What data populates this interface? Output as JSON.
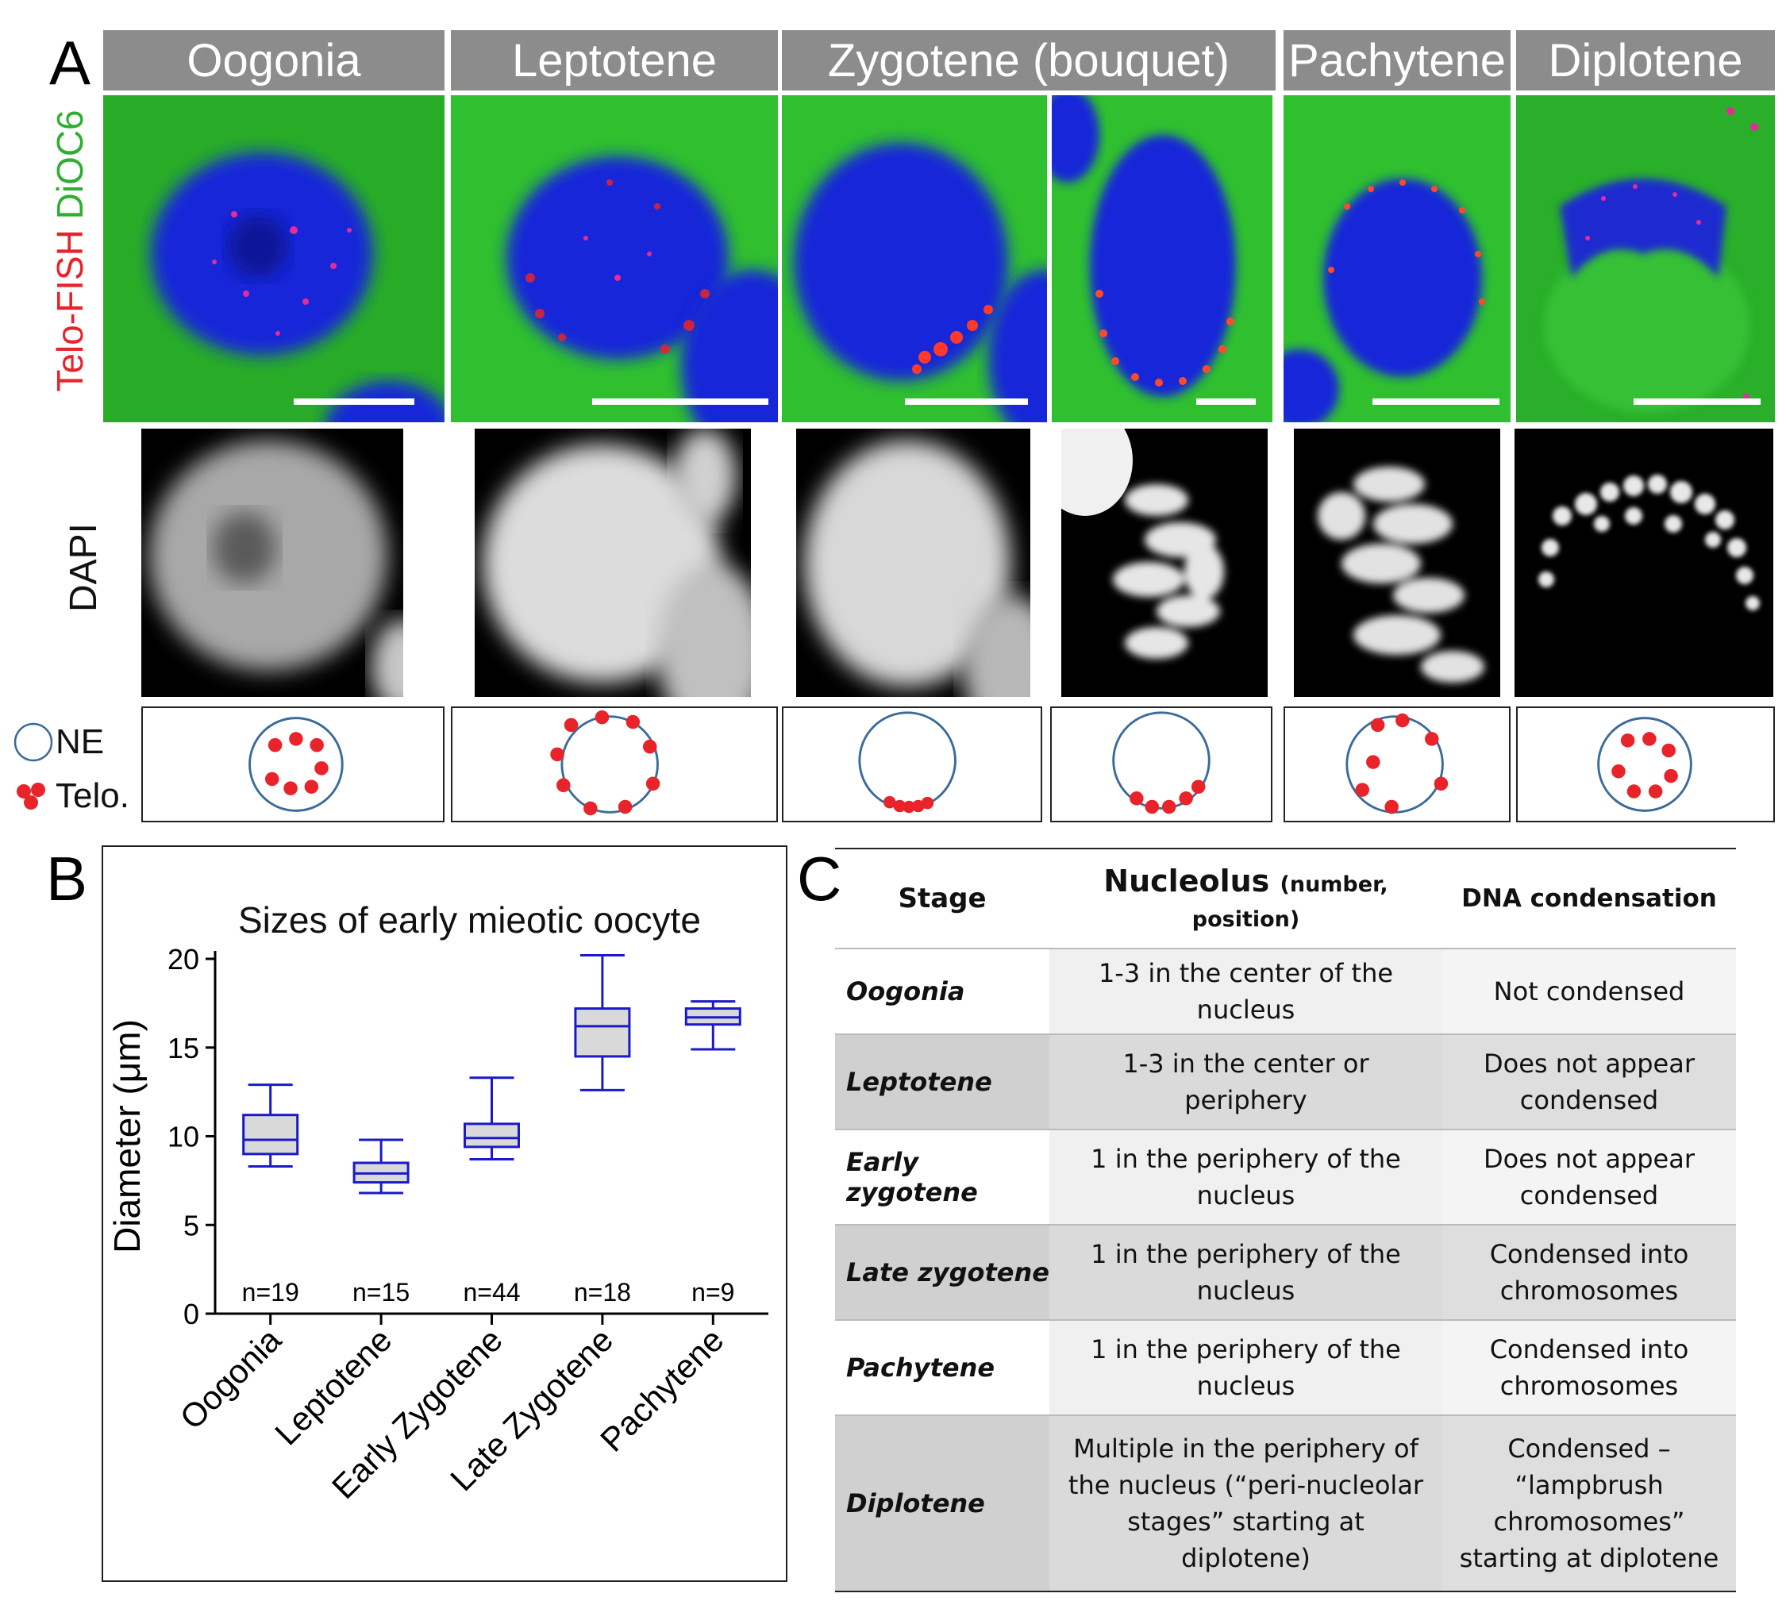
{
  "panel_a": {
    "letter": "A",
    "stage_headers": [
      "Oogonia",
      "Leptotene",
      "Zygotene (bouquet)",
      "Pachytene",
      "Diplotene"
    ],
    "stain_label_red": "Telo-FISH",
    "stain_label_green": "DiOC6",
    "dapi_label": "DAPI",
    "legend_ne": "NE",
    "legend_telo": "Telo.",
    "colors": {
      "red": "#e8232a",
      "green": "#2fbf2f",
      "blue": "#1828d8",
      "header_bg": "#8c8c8c",
      "ne_circle": "#3b6b9a"
    }
  },
  "panel_b": {
    "letter": "B",
    "n_labels": [
      "n=19",
      "n=15",
      "n=44",
      "n=18",
      "n=9"
    ]
  },
  "chart_data": {
    "type": "box",
    "title": "Sizes of early mieotic oocyte",
    "xlabel": "",
    "ylabel": "Diameter (μm)",
    "ylim": [
      0,
      20
    ],
    "yticks": [
      0,
      5,
      10,
      15,
      20
    ],
    "categories": [
      "Oogonia",
      "Leptotene",
      "Early Zygotene",
      "Late Zygotene",
      "Pachytene"
    ],
    "series": [
      {
        "values": [
          {
            "min": 8.3,
            "q1": 9.0,
            "median": 9.8,
            "q3": 11.2,
            "max": 12.9
          },
          {
            "min": 6.8,
            "q1": 7.4,
            "median": 7.9,
            "q3": 8.5,
            "max": 9.8
          },
          {
            "min": 8.7,
            "q1": 9.4,
            "median": 9.9,
            "q3": 10.7,
            "max": 13.3
          },
          {
            "min": 12.6,
            "q1": 14.5,
            "median": 16.2,
            "q3": 17.2,
            "max": 20.2
          },
          {
            "min": 14.9,
            "q1": 16.3,
            "median": 16.7,
            "q3": 17.2,
            "max": 17.6
          }
        ]
      }
    ],
    "box_color": "#1a1acc",
    "box_fill": "#d9d9d9"
  },
  "panel_c": {
    "letter": "C",
    "headers": {
      "stage": "Stage",
      "nucleolus": "Nucleolus",
      "nucleolus_sub": "(number, position)",
      "dna": "DNA condensation"
    },
    "rows": [
      {
        "stage": "Oogonia",
        "nucleolus": "1-3 in the center of the nucleus",
        "dna": "Not condensed"
      },
      {
        "stage": "Leptotene",
        "nucleolus": "1-3 in the center or periphery",
        "dna": "Does not appear condensed"
      },
      {
        "stage": "Early zygotene",
        "nucleolus": "1 in the periphery of the nucleus",
        "dna": "Does not appear condensed"
      },
      {
        "stage": "Late zygotene",
        "nucleolus": "1 in the periphery of the nucleus",
        "dna": "Condensed into chromosomes"
      },
      {
        "stage": "Pachytene",
        "nucleolus": "1 in the periphery of the nucleus",
        "dna": "Condensed into chromosomes"
      },
      {
        "stage": "Diplotene",
        "nucleolus": "Multiple in the periphery of the nucleus (“peri-nucleolar stages” starting at diplotene)",
        "dna": "Condensed – “lampbrush chromosomes” starting at diplotene"
      }
    ]
  }
}
